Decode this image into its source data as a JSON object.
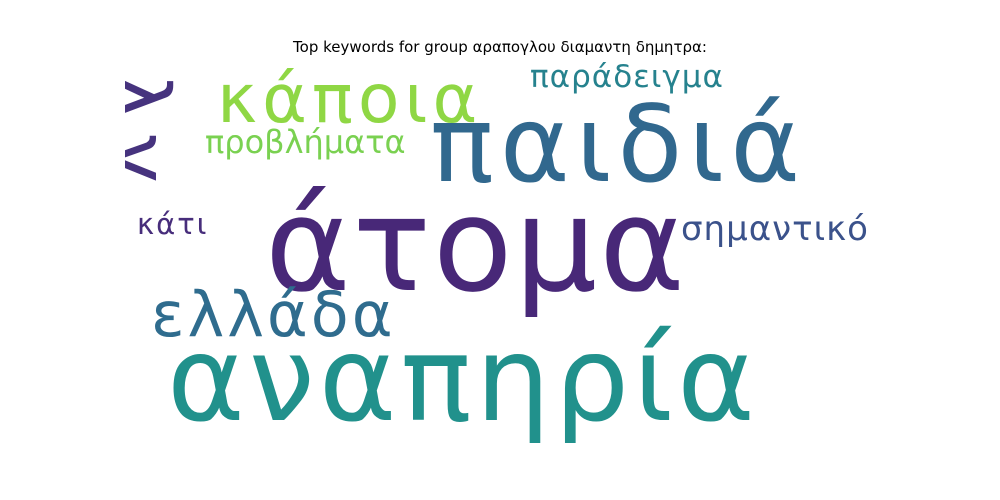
{
  "title": "Top keywords for group αραπογλου διαμαντη δημητρα:",
  "words": [
    {
      "text": "αναπηρία",
      "color": "#21918c"
    },
    {
      "text": "άτομα",
      "color": "#482878"
    },
    {
      "text": "παιδιά",
      "color": "#31688e"
    },
    {
      "text": "κάποια",
      "color": "#8fd744"
    },
    {
      "text": "ελλάδα",
      "color": "#2f6c8e"
    },
    {
      "text": "παράδειγμα",
      "color": "#26828e"
    },
    {
      "text": "προβλήματα",
      "color": "#7ad151"
    },
    {
      "text": "σημαντικό",
      "color": "#3b528b"
    },
    {
      "text": "κάτι",
      "color": "#472d7b"
    },
    {
      "text": "λγ",
      "color": "#46337e"
    }
  ]
}
